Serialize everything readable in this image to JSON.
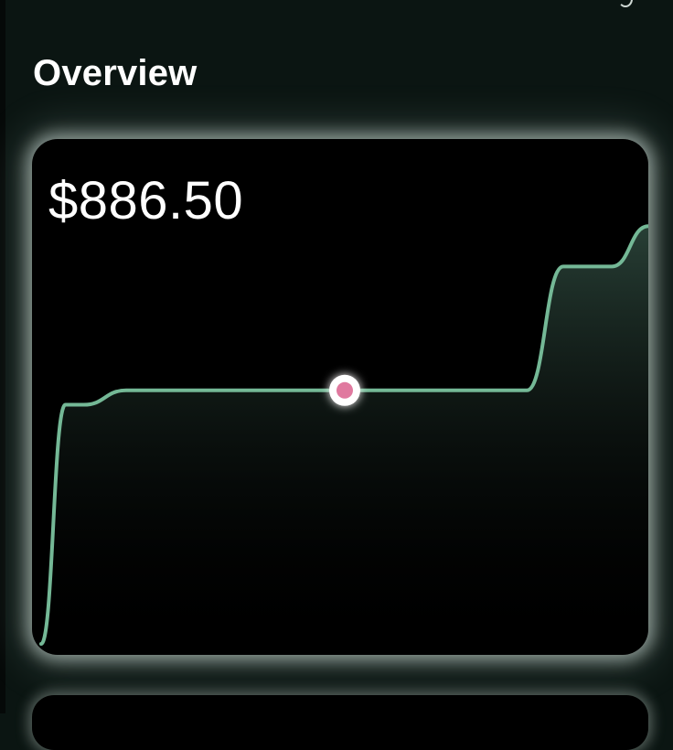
{
  "header": {
    "title": "Overview"
  },
  "card": {
    "value": "$886.50"
  },
  "colors": {
    "line": "#74b896",
    "marker_fill": "#e0799f",
    "marker_ring": "#ffffff",
    "background": "#0b1512",
    "card": "#000000"
  },
  "chart_data": {
    "type": "line",
    "x": [
      0,
      0.04,
      0.07,
      0.14,
      0.19,
      0.5,
      0.8,
      0.86,
      0.94,
      1.0
    ],
    "values": [
      0,
      0.83,
      0.83,
      0.88,
      0.88,
      0.88,
      0.88,
      1.31,
      1.31,
      1.45
    ],
    "highlight": {
      "x": 0.5,
      "value": 0.88
    },
    "fill": "gradient-area"
  }
}
